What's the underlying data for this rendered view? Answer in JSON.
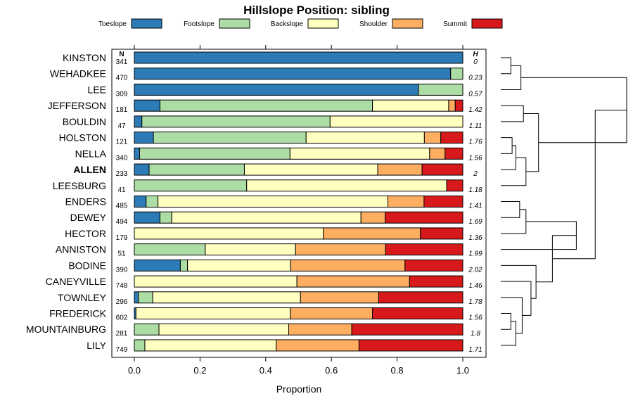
{
  "chart_data": {
    "type": "bar",
    "stacked": true,
    "orientation": "horizontal",
    "title": "Hillslope Position: sibling",
    "xlabel": "Proportion",
    "xlim": [
      0,
      1
    ],
    "xticks": [
      "0.0",
      "0.2",
      "0.4",
      "0.6",
      "0.8",
      "1.0"
    ],
    "n_header": "N",
    "h_header": "H",
    "highlight": "ALLEN",
    "series": [
      {
        "name": "Toeslope",
        "color": "#2c7bb6"
      },
      {
        "name": "Footslope",
        "color": "#abdda4"
      },
      {
        "name": "Backslope",
        "color": "#ffffbf"
      },
      {
        "name": "Shoulder",
        "color": "#fdae61"
      },
      {
        "name": "Summit",
        "color": "#d7191c"
      }
    ],
    "rows": [
      {
        "name": "KINSTON",
        "n": "341",
        "h": "0",
        "values": [
          1.0,
          0,
          0,
          0,
          0
        ]
      },
      {
        "name": "WEHADKEE",
        "n": "470",
        "h": "0.23",
        "values": [
          0.963,
          0.037,
          0,
          0,
          0
        ]
      },
      {
        "name": "LEE",
        "n": "309",
        "h": "0.57",
        "values": [
          0.865,
          0.135,
          0,
          0,
          0
        ]
      },
      {
        "name": "JEFFERSON",
        "n": "181",
        "h": "1.42",
        "values": [
          0.078,
          0.647,
          0.232,
          0.02,
          0.023
        ]
      },
      {
        "name": "BOULDIN",
        "n": "47",
        "h": "1.11",
        "values": [
          0.023,
          0.573,
          0.404,
          0,
          0
        ]
      },
      {
        "name": "HOLSTON",
        "n": "121",
        "h": "1.76",
        "values": [
          0.058,
          0.465,
          0.36,
          0.05,
          0.067
        ]
      },
      {
        "name": "NELLA",
        "n": "340",
        "h": "1.56",
        "values": [
          0.016,
          0.458,
          0.425,
          0.047,
          0.054
        ]
      },
      {
        "name": "ALLEN",
        "n": "233",
        "h": "2",
        "values": [
          0.045,
          0.29,
          0.406,
          0.135,
          0.124
        ]
      },
      {
        "name": "LEESBURG",
        "n": "41",
        "h": "1.18",
        "values": [
          0,
          0.342,
          0.609,
          0,
          0.049
        ]
      },
      {
        "name": "ENDERS",
        "n": "485",
        "h": "1.41",
        "values": [
          0.036,
          0.036,
          0.7,
          0.11,
          0.118
        ]
      },
      {
        "name": "DEWEY",
        "n": "494",
        "h": "1.69",
        "values": [
          0.078,
          0.036,
          0.576,
          0.074,
          0.236
        ]
      },
      {
        "name": "HECTOR",
        "n": "179",
        "h": "1.36",
        "values": [
          0,
          0,
          0.575,
          0.296,
          0.129
        ]
      },
      {
        "name": "ANNISTON",
        "n": "51",
        "h": "1.99",
        "values": [
          0,
          0.216,
          0.275,
          0.274,
          0.235
        ]
      },
      {
        "name": "BODINE",
        "n": "390",
        "h": "2.02",
        "values": [
          0.14,
          0.022,
          0.314,
          0.348,
          0.176
        ]
      },
      {
        "name": "CANEYVILLE",
        "n": "748",
        "h": "1.46",
        "values": [
          0,
          0,
          0.495,
          0.343,
          0.162
        ]
      },
      {
        "name": "TOWNLEY",
        "n": "296",
        "h": "1.78",
        "values": [
          0.012,
          0.044,
          0.45,
          0.238,
          0.256
        ]
      },
      {
        "name": "FREDERICK",
        "n": "602",
        "h": "1.56",
        "values": [
          0.005,
          0,
          0.47,
          0.25,
          0.275
        ]
      },
      {
        "name": "MOUNTAINBURG",
        "n": "281",
        "h": "1.8",
        "values": [
          0,
          0.075,
          0.395,
          0.192,
          0.338
        ]
      },
      {
        "name": "LILY",
        "n": "749",
        "h": "1.71",
        "values": [
          0,
          0.032,
          0.4,
          0.252,
          0.316
        ]
      }
    ],
    "dendrogram": {
      "leaves": [
        "KINSTON",
        "WEHADKEE",
        "LEE",
        "JEFFERSON",
        "BOULDIN",
        "HOLSTON",
        "NELLA",
        "ALLEN",
        "LEESBURG",
        "ENDERS",
        "DEWEY",
        "HECTOR",
        "ANNISTON",
        "BODINE",
        "CANEYVILLE",
        "TOWNLEY",
        "FREDERICK",
        "MOUNTAINBURG",
        "LILY"
      ],
      "merges": [
        [
          0,
          1,
          0.08
        ],
        [
          19,
          2,
          0.16
        ],
        [
          3,
          4,
          0.18
        ],
        [
          5,
          6,
          0.09
        ],
        [
          22,
          7,
          0.12
        ],
        [
          23,
          8,
          0.2
        ],
        [
          21,
          24,
          0.3
        ],
        [
          20,
          25,
          1.0
        ],
        [
          9,
          10,
          0.15
        ],
        [
          27,
          11,
          0.2
        ],
        [
          28,
          12,
          0.6
        ],
        [
          16,
          17,
          0.08
        ],
        [
          30,
          18,
          0.12
        ],
        [
          15,
          31,
          0.17
        ],
        [
          14,
          32,
          0.24
        ],
        [
          13,
          33,
          0.28
        ],
        [
          29,
          34,
          0.41
        ],
        [
          26,
          35,
          0.75
        ]
      ]
    }
  }
}
